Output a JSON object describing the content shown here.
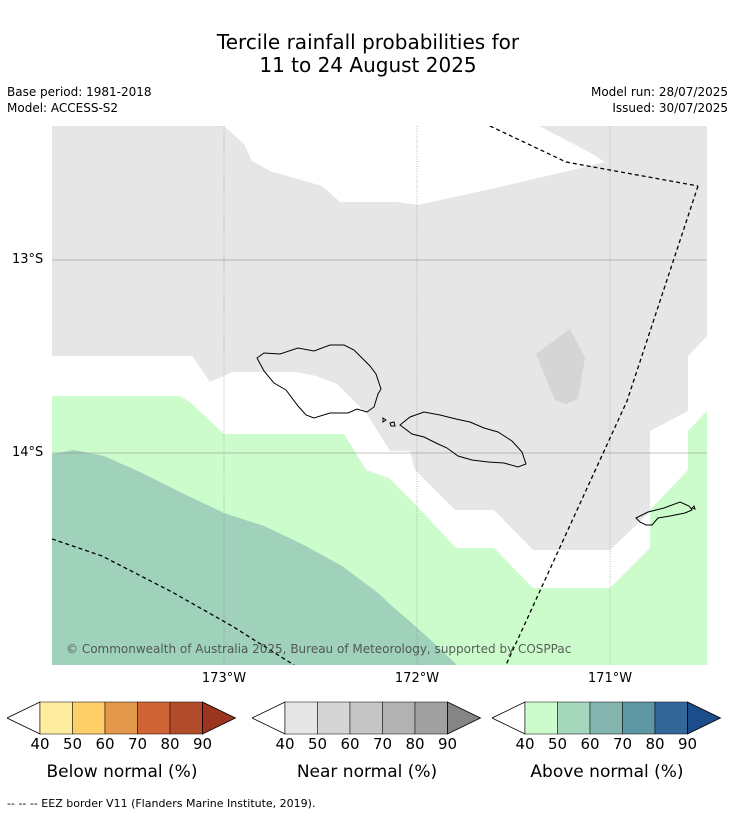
{
  "header": {
    "title_line1": "Tercile rainfall probabilities for",
    "title_line2": "11 to 24 August 2025",
    "base_period": "Base period: 1981-2018",
    "model": "Model: ACCESS-S2",
    "model_run": "Model run: 28/07/2025",
    "issued": "Issued: 30/07/2025"
  },
  "map": {
    "lat_labels": [
      "13°S",
      "14°S"
    ],
    "lon_labels": [
      "173°W",
      "172°W",
      "171°W"
    ],
    "copyright": "© Commonwealth of Australia 2025, Bureau of Meteorology, supported by COSPPac",
    "colors": {
      "ocean": "#ffffff",
      "near_normal_40_50": "#e6e6e6",
      "near_normal_50_60": "#d5d5d5",
      "above_normal_40_50": "#ccfccc",
      "above_normal_50_60": "#9fd1bb",
      "eez_border": "#000000"
    }
  },
  "colorbars": [
    {
      "title": "Below normal (%)",
      "ticks": [
        "40",
        "50",
        "60",
        "70",
        "80",
        "90"
      ],
      "colors": [
        "#ffffff",
        "#feeca0",
        "#fece69",
        "#e2974a",
        "#cf6436",
        "#b24b2a",
        "#9b3520"
      ]
    },
    {
      "title": "Near normal (%)",
      "ticks": [
        "40",
        "50",
        "60",
        "70",
        "80",
        "90"
      ],
      "colors": [
        "#ffffff",
        "#e6e6e6",
        "#d5d5d5",
        "#c6c6c6",
        "#b2b2b2",
        "#a0a0a0",
        "#858585"
      ]
    },
    {
      "title": "Above normal (%)",
      "ticks": [
        "40",
        "50",
        "60",
        "70",
        "80",
        "90"
      ],
      "colors": [
        "#ffffff",
        "#ccfccc",
        "#a5d7bd",
        "#83b5ae",
        "#5d97a3",
        "#336799",
        "#1a4d8a"
      ]
    }
  ],
  "footnote": "-- -- -- EEZ border V11 (Flanders Marine Institute, 2019)."
}
